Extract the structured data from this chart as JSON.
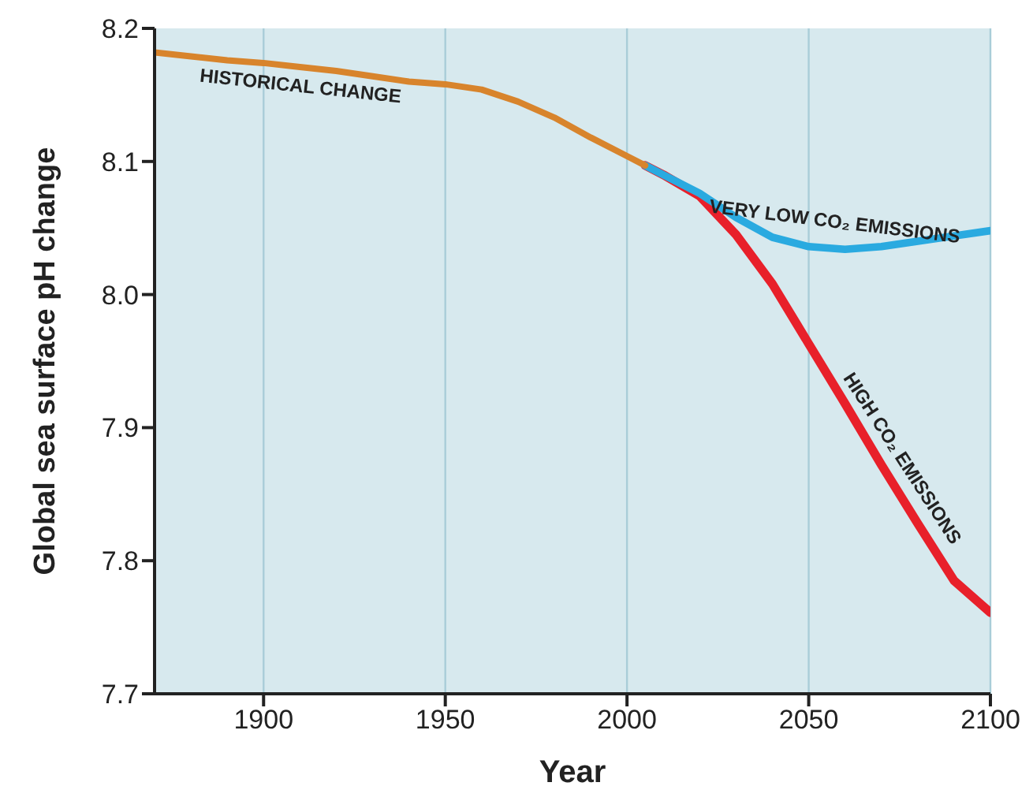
{
  "chart_data": {
    "type": "line",
    "xlabel": "Year",
    "ylabel": "Global sea surface pH change",
    "xlim": [
      1870,
      2100
    ],
    "xticks": [
      1900,
      1950,
      2000,
      2050,
      2100
    ],
    "ylim": [
      7.7,
      8.2
    ],
    "yticks": [
      7.7,
      7.8,
      7.9,
      {
        "value": 8.0,
        "label": "8.0"
      },
      8.1,
      8.2
    ],
    "grid": "x",
    "legend": false,
    "marker": "none",
    "line_style": "solid",
    "series": [
      {
        "name": "HISTORICAL CHANGE",
        "color": "#d8842c",
        "x": [
          1870,
          1880,
          1890,
          1900,
          1910,
          1920,
          1930,
          1940,
          1950,
          1960,
          1970,
          1980,
          1990,
          2000,
          2005
        ],
        "values": [
          8.182,
          8.179,
          8.176,
          8.174,
          8.171,
          8.168,
          8.164,
          8.16,
          8.158,
          8.154,
          8.145,
          8.133,
          8.118,
          8.104,
          8.097
        ]
      },
      {
        "name": "VERY LOW CO₂ EMISSIONS",
        "color": "#2aaae0",
        "x": [
          2005,
          2010,
          2020,
          2030,
          2040,
          2050,
          2060,
          2070,
          2080,
          2090,
          2100
        ],
        "values": [
          8.097,
          8.09,
          8.076,
          8.058,
          8.043,
          8.036,
          8.034,
          8.036,
          8.04,
          8.044,
          8.048
        ]
      },
      {
        "name": "HIGH CO₂ EMISSIONS",
        "color": "#e8202a",
        "x": [
          2005,
          2010,
          2020,
          2030,
          2040,
          2050,
          2060,
          2070,
          2080,
          2090,
          2100
        ],
        "values": [
          8.097,
          8.09,
          8.074,
          8.045,
          8.008,
          7.963,
          7.918,
          7.872,
          7.828,
          7.785,
          7.761
        ]
      }
    ]
  }
}
